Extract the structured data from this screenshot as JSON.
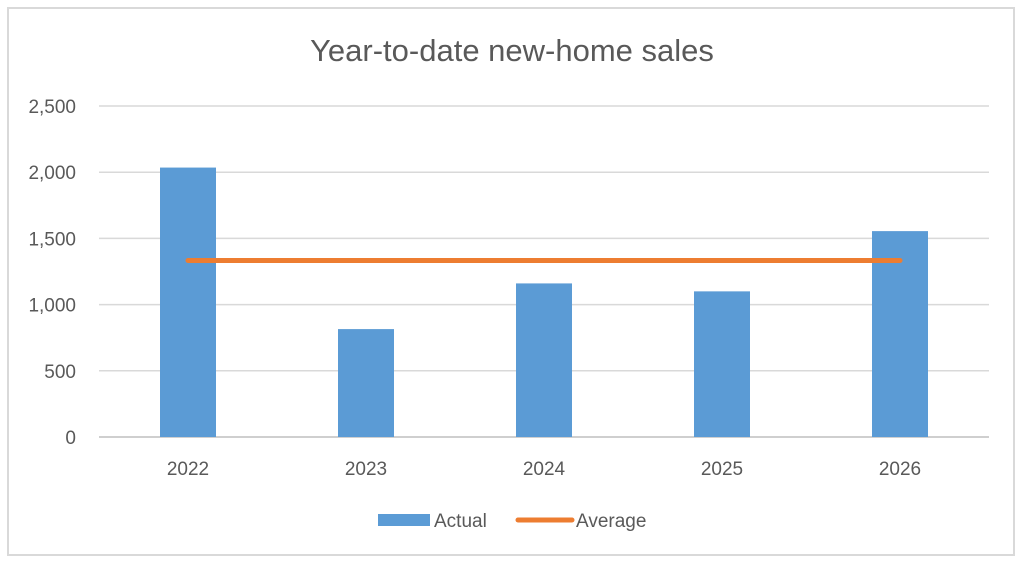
{
  "chart_data": {
    "type": "bar",
    "title": "Year-to-date new-home sales",
    "xlabel": "",
    "ylabel": "",
    "categories": [
      "2022",
      "2023",
      "2024",
      "2025",
      "2026"
    ],
    "series": [
      {
        "name": "Actual",
        "kind": "bar",
        "color": "#5b9bd5",
        "values": [
          2035,
          815,
          1160,
          1100,
          1555
        ]
      },
      {
        "name": "Average",
        "kind": "line",
        "color": "#ed7d31",
        "values": [
          1333,
          1333,
          1333,
          1333,
          1333
        ]
      }
    ],
    "ylim": [
      0,
      2500
    ],
    "yticks": [
      0,
      500,
      1000,
      1500,
      2000,
      2500
    ],
    "ytick_labels": [
      "0",
      "500",
      "1,000",
      "1,500",
      "2,000",
      "2,500"
    ],
    "grid": true,
    "legend_position": "bottom"
  }
}
